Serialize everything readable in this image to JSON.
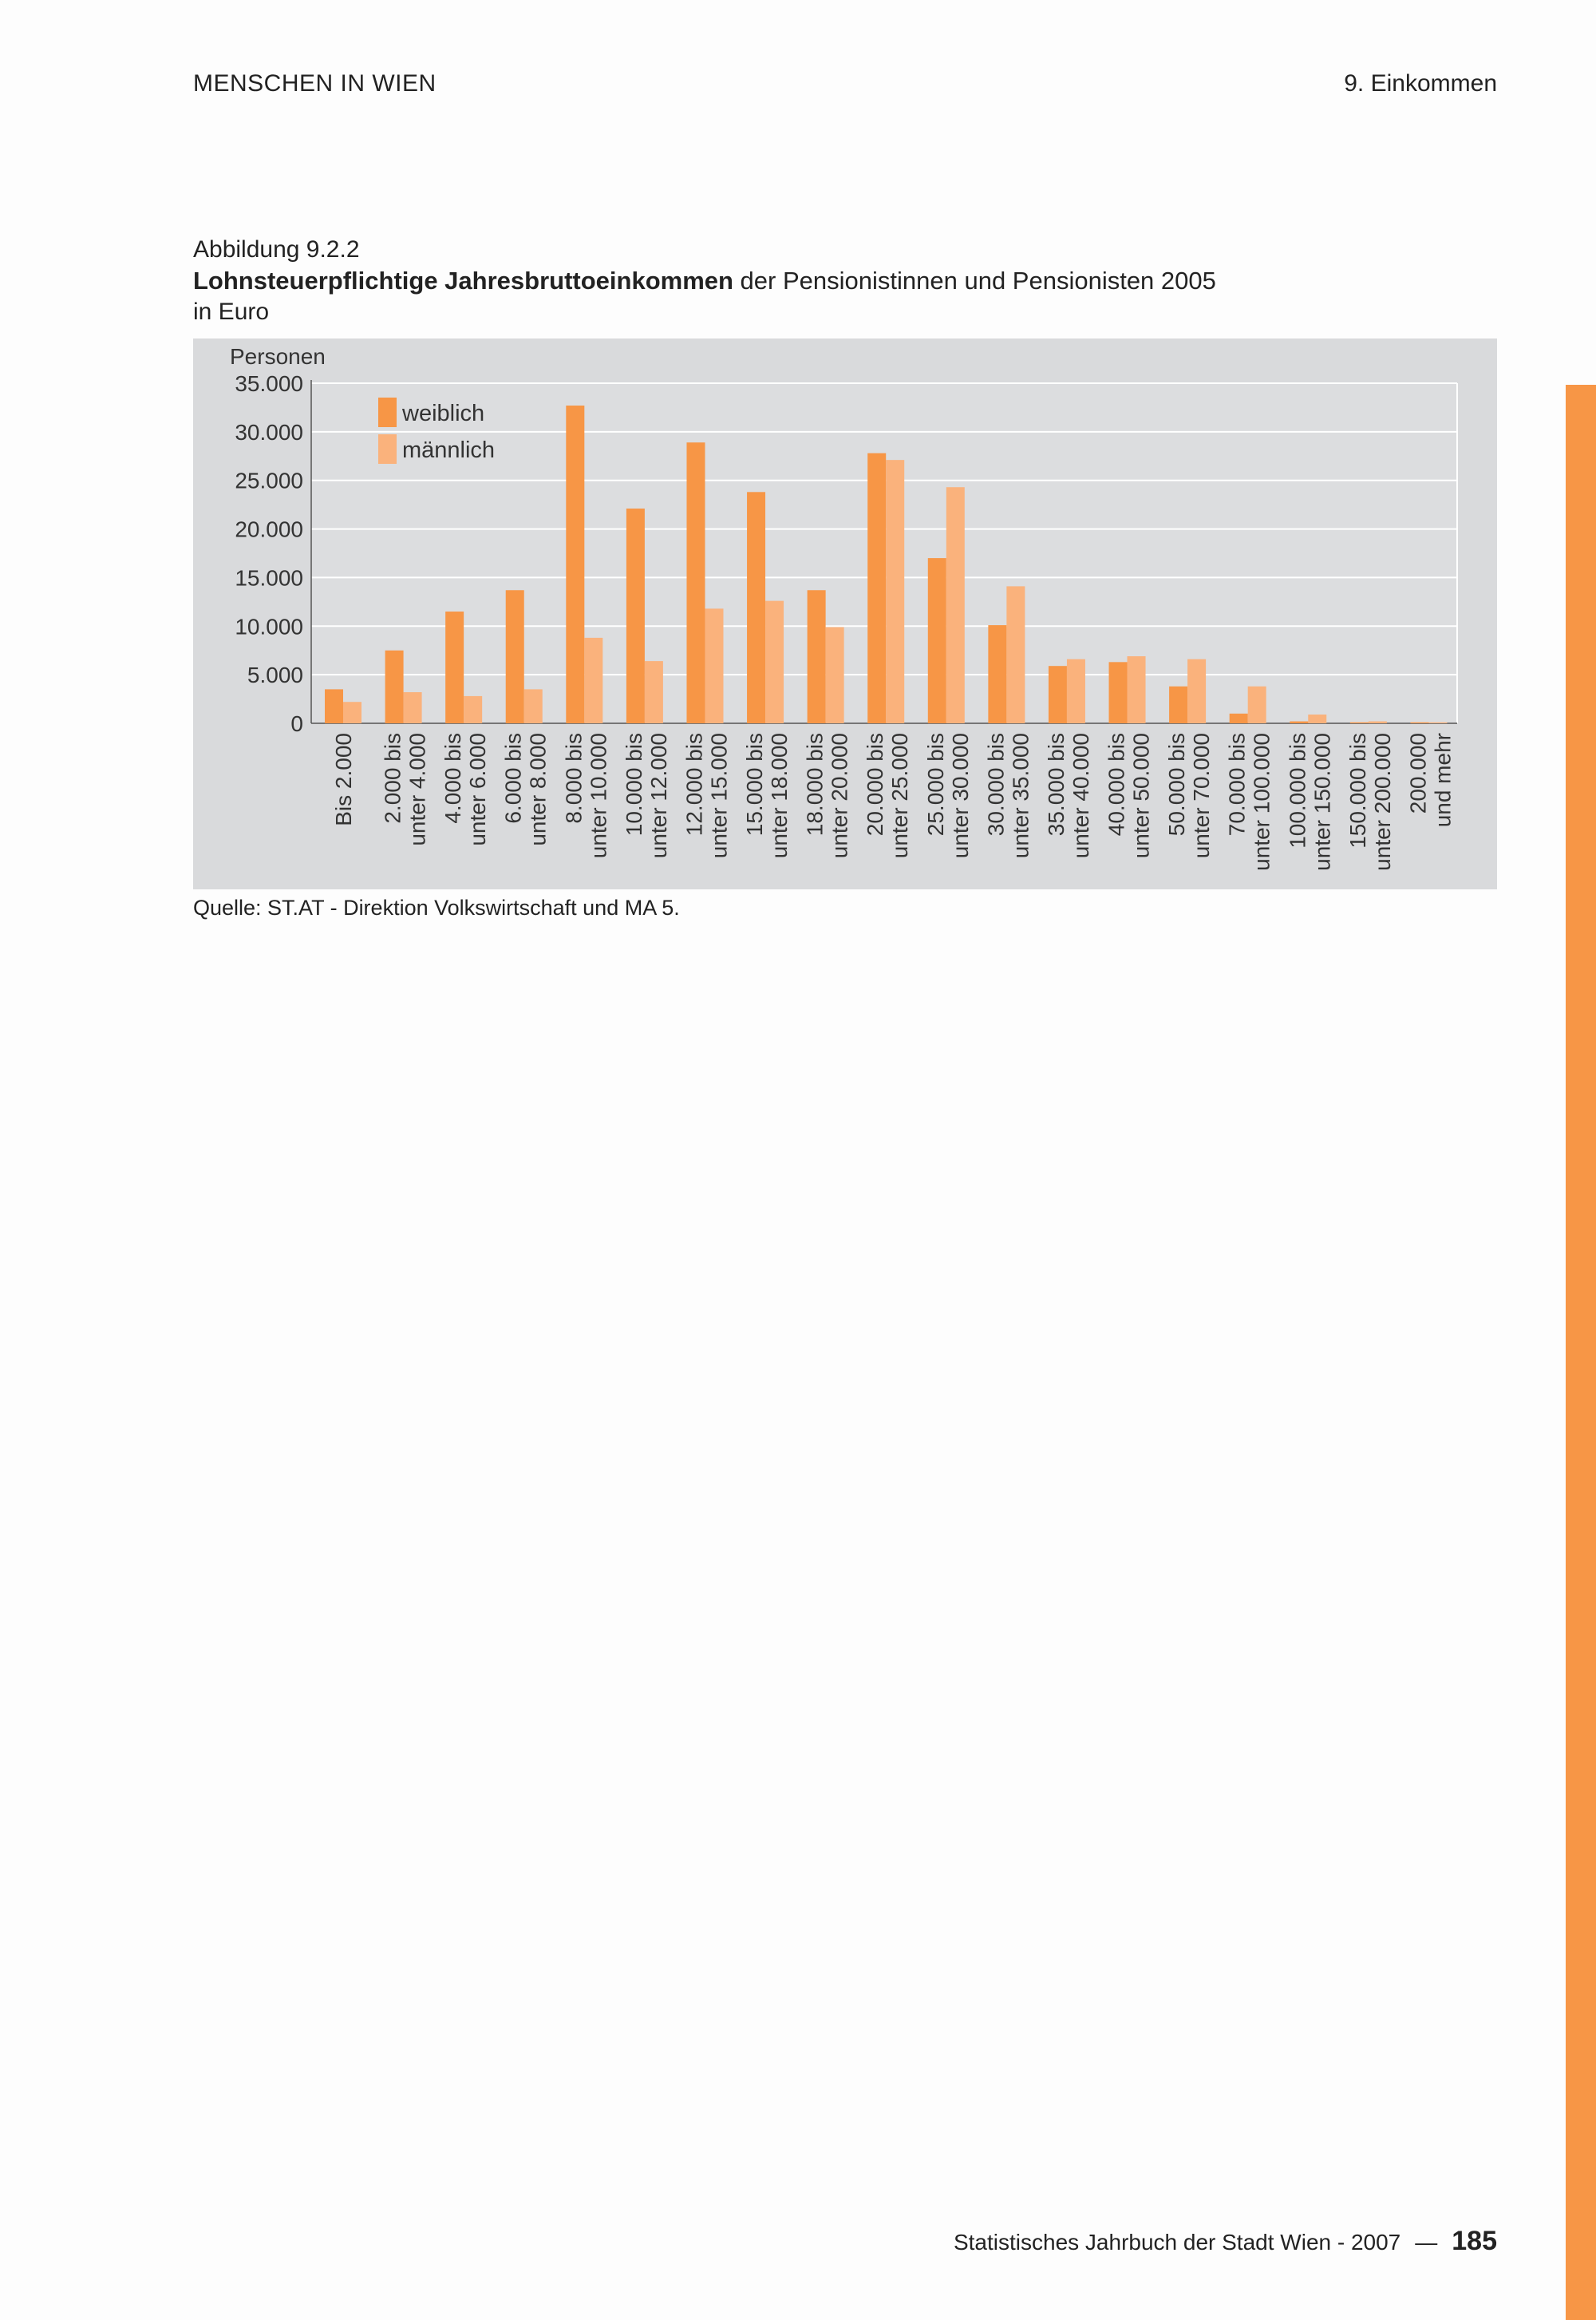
{
  "header": {
    "left": "MENSCHEN IN WIEN",
    "right": "9. Einkommen"
  },
  "figure": {
    "label": "Abbildung 9.2.2",
    "title_bold": "Lohnsteuerpflichtige Jahresbruttoeinkommen",
    "title_rest": " der Pensionistinnen und Pensionisten 2005",
    "unit": "in Euro",
    "source": "Quelle: ST.AT - Direktion Volkswirtschaft und MA 5."
  },
  "colors": {
    "weiblich": "#f79646",
    "maennlich": "#fab27c",
    "panel": "#d9dadc",
    "accent": "#f79646"
  },
  "chart_data": {
    "type": "bar",
    "ylabel": "Personen",
    "ylim": [
      0,
      35000
    ],
    "yticks": [
      0,
      5000,
      10000,
      15000,
      20000,
      25000,
      30000,
      35000
    ],
    "ytick_labels": [
      "0",
      "5.000",
      "10.000",
      "15.000",
      "20.000",
      "25.000",
      "30.000",
      "35.000"
    ],
    "grid": true,
    "legend": "top-left",
    "categories": [
      [
        "Bis 2.000"
      ],
      [
        "2.000 bis",
        "unter 4.000"
      ],
      [
        "4.000 bis",
        "unter 6.000"
      ],
      [
        "6.000 bis",
        "unter 8.000"
      ],
      [
        "8.000 bis",
        "unter 10.000"
      ],
      [
        "10.000 bis",
        "unter 12.000"
      ],
      [
        "12.000 bis",
        "unter 15.000"
      ],
      [
        "15.000 bis",
        "unter 18.000"
      ],
      [
        "18.000 bis",
        "unter 20.000"
      ],
      [
        "20.000 bis",
        "unter 25.000"
      ],
      [
        "25.000 bis",
        "unter 30.000"
      ],
      [
        "30.000 bis",
        "unter 35.000"
      ],
      [
        "35.000 bis",
        "unter 40.000"
      ],
      [
        "40.000 bis",
        "unter 50.000"
      ],
      [
        "50.000 bis",
        "unter 70.000"
      ],
      [
        "70.000 bis",
        "unter 100.000"
      ],
      [
        "100.000 bis",
        "unter 150.000"
      ],
      [
        "150.000 bis",
        "unter 200.000"
      ],
      [
        "200.000",
        "und mehr"
      ]
    ],
    "series": [
      {
        "name": "weiblich",
        "color": "#f79646",
        "values": [
          3500,
          7500,
          11500,
          13700,
          32700,
          22100,
          28900,
          23800,
          13700,
          27800,
          17000,
          10100,
          5900,
          6300,
          3800,
          1000,
          200,
          100,
          100
        ]
      },
      {
        "name": "männlich",
        "color": "#fab27c",
        "values": [
          2200,
          3200,
          2800,
          3500,
          8800,
          6400,
          11800,
          12600,
          9900,
          27100,
          24300,
          14100,
          6600,
          6900,
          6600,
          3800,
          900,
          200,
          100
        ]
      }
    ]
  },
  "footer": {
    "text": "Statistisches Jahrbuch der Stadt Wien - 2007",
    "dash": "—",
    "page": "185"
  }
}
